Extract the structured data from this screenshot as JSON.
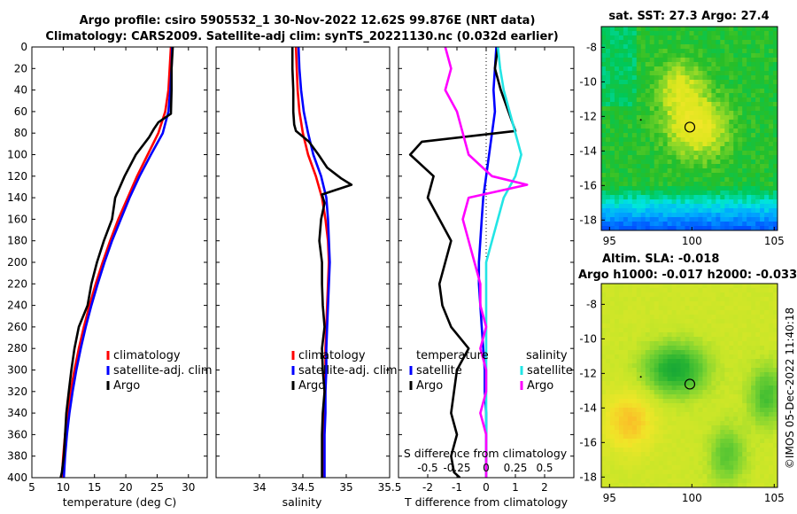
{
  "title": {
    "line1": "Argo profile: csiro 5905532_1 30-Nov-2022 12.62S 99.876E (NRT data)",
    "line2": "Climatology: CARS2009. Satellite-adj clim: synTS_20221130.nc (0.032d earlier)"
  },
  "watermark": "©IMOS 05-Dec-2022 11:40:18",
  "colors": {
    "climatology": "#ff0000",
    "satellite": "#0000ff",
    "argo": "#000000",
    "sal_satellite": "#22e5e5",
    "sal_argo": "#ff00ff"
  },
  "chart_data": [
    {
      "id": "temperature",
      "type": "line",
      "xlabel": "temperature (deg C)",
      "ylabel": "",
      "xlim": [
        5,
        33
      ],
      "ylim": [
        400,
        0
      ],
      "x_ticks": [
        5,
        10,
        15,
        20,
        25,
        30
      ],
      "y_ticks": [
        0,
        20,
        40,
        60,
        80,
        100,
        120,
        140,
        160,
        180,
        200,
        220,
        240,
        260,
        280,
        300,
        320,
        340,
        360,
        380,
        400
      ],
      "legend": [
        "climatology",
        "satellite-adj. clim",
        "Argo"
      ],
      "series": [
        {
          "name": "climatology",
          "x": [
            27.2,
            27.0,
            26.8,
            26.3,
            25.2,
            23.5,
            21.8,
            20.3,
            18.8,
            17.5,
            16.3,
            15.2,
            14.2,
            13.3,
            12.5,
            11.8,
            11.2,
            10.7,
            10.3,
            10.0,
            9.8
          ],
          "y": [
            0,
            20,
            40,
            60,
            80,
            100,
            120,
            140,
            160,
            180,
            200,
            220,
            240,
            260,
            280,
            300,
            320,
            340,
            360,
            380,
            400
          ]
        },
        {
          "name": "satellite-adj. clim",
          "x": [
            27.4,
            27.3,
            27.1,
            26.8,
            25.9,
            24.0,
            22.2,
            20.6,
            19.2,
            17.8,
            16.6,
            15.5,
            14.5,
            13.6,
            12.8,
            12.1,
            11.5,
            11.0,
            10.6,
            10.3,
            10.1
          ],
          "y": [
            0,
            20,
            40,
            60,
            80,
            100,
            120,
            140,
            160,
            180,
            200,
            220,
            240,
            260,
            280,
            300,
            320,
            340,
            360,
            380,
            400
          ]
        },
        {
          "name": "Argo",
          "x": [
            27.5,
            27.3,
            27.3,
            27.2,
            25.2,
            24.5,
            23.7,
            21.6,
            19.8,
            18.3,
            17.8,
            16.5,
            15.4,
            14.5,
            13.9,
            12.5,
            11.8,
            11.3,
            10.9,
            10.5,
            10.3,
            10.1,
            9.8,
            9.6
          ],
          "y": [
            0,
            20,
            40,
            62,
            70,
            76,
            84,
            100,
            120,
            140,
            160,
            180,
            200,
            220,
            240,
            260,
            280,
            300,
            320,
            340,
            360,
            380,
            395,
            400
          ]
        }
      ]
    },
    {
      "id": "salinity",
      "type": "line",
      "xlabel": "salinity",
      "ylabel": "",
      "xlim": [
        33.5,
        35.5
      ],
      "ylim": [
        400,
        0
      ],
      "x_ticks": [
        34,
        34.5,
        35,
        35.5
      ],
      "legend": [
        "climatology",
        "satellite-adj. clim",
        "Argo"
      ],
      "series": [
        {
          "name": "climatology",
          "x": [
            34.42,
            34.43,
            34.44,
            34.46,
            34.5,
            34.56,
            34.65,
            34.72,
            34.76,
            34.79,
            34.8,
            34.79,
            34.78,
            34.77,
            34.76,
            34.76,
            34.75,
            34.75,
            34.74,
            34.74,
            34.74
          ],
          "y": [
            0,
            20,
            40,
            60,
            80,
            100,
            120,
            140,
            160,
            180,
            200,
            220,
            240,
            260,
            280,
            300,
            320,
            340,
            360,
            380,
            400
          ]
        },
        {
          "name": "satellite-adj. clim",
          "x": [
            34.45,
            34.46,
            34.48,
            34.51,
            34.56,
            34.62,
            34.71,
            34.77,
            34.79,
            34.8,
            34.81,
            34.8,
            34.79,
            34.78,
            34.77,
            34.77,
            34.76,
            34.76,
            34.75,
            34.75,
            34.75
          ],
          "y": [
            0,
            20,
            40,
            60,
            80,
            100,
            120,
            140,
            160,
            180,
            200,
            220,
            240,
            260,
            280,
            300,
            320,
            340,
            360,
            380,
            400
          ]
        },
        {
          "name": "Argo",
          "x": [
            34.38,
            34.38,
            34.39,
            34.39,
            34.4,
            34.42,
            34.57,
            34.68,
            34.78,
            34.94,
            35.06,
            34.72,
            34.75,
            34.71,
            34.69,
            34.72,
            34.72,
            34.73,
            34.75,
            34.72,
            34.73,
            34.75,
            34.73,
            34.72,
            34.72,
            34.72
          ],
          "y": [
            0,
            20,
            40,
            60,
            72,
            78,
            88,
            100,
            112,
            122,
            128,
            137,
            145,
            160,
            180,
            200,
            220,
            240,
            260,
            280,
            300,
            320,
            340,
            360,
            380,
            400
          ]
        }
      ]
    },
    {
      "id": "difference",
      "type": "line",
      "xlabel": "T difference from climatology",
      "x2label": "S difference from climatology",
      "ylabel": "",
      "xlim": [
        -3,
        3
      ],
      "ylim": [
        400,
        0
      ],
      "x_ticks": [
        -2,
        -1,
        0,
        1,
        2
      ],
      "x2_ticks": [
        "-0.5",
        "-0.25",
        "0",
        "0.25",
        "0.5"
      ],
      "legend_left_title": "temperature",
      "legend_right_title": "salinity",
      "legend_left": [
        "satellite",
        "Argo"
      ],
      "legend_right": [
        "satellite",
        "Argo"
      ],
      "series": [
        {
          "name": "T satellite",
          "x": [
            0.35,
            0.3,
            0.25,
            0.3,
            0.2,
            0.1,
            0.0,
            -0.1,
            -0.15,
            -0.2,
            -0.25,
            -0.25,
            -0.2,
            -0.15,
            -0.1,
            -0.05,
            -0.05,
            0.0,
            0.0,
            0.0,
            0.0
          ],
          "y": [
            0,
            20,
            40,
            60,
            80,
            100,
            120,
            140,
            160,
            180,
            200,
            220,
            240,
            260,
            280,
            300,
            320,
            340,
            360,
            380,
            400
          ]
        },
        {
          "name": "T Argo",
          "x": [
            0.4,
            0.3,
            0.5,
            1.0,
            -2.2,
            -2.6,
            -1.8,
            -2.0,
            -1.6,
            -1.2,
            -1.4,
            -1.6,
            -1.5,
            -1.2,
            -0.6,
            -1.0,
            -1.1,
            -1.2,
            -1.0,
            -1.2,
            -1.1,
            -0.9
          ],
          "y": [
            0,
            20,
            40,
            78,
            88,
            100,
            120,
            140,
            160,
            180,
            200,
            220,
            240,
            260,
            280,
            300,
            320,
            340,
            360,
            380,
            395,
            400
          ]
        },
        {
          "name": "S satellite",
          "x": [
            0.1,
            0.12,
            0.15,
            0.2,
            0.25,
            0.3,
            0.25,
            0.15,
            0.1,
            0.05,
            0.0,
            0.0,
            0.0,
            0.0,
            0.0,
            0.0,
            0.0,
            0.0,
            0.0,
            0.0,
            0.0
          ],
          "y": [
            0,
            20,
            40,
            60,
            80,
            100,
            120,
            140,
            160,
            180,
            200,
            220,
            240,
            260,
            280,
            300,
            320,
            340,
            360,
            380,
            400
          ]
        },
        {
          "name": "S Argo",
          "x": [
            -0.35,
            -0.3,
            -0.35,
            -0.25,
            -0.2,
            -0.15,
            0.05,
            0.35,
            -0.15,
            -0.2,
            -0.15,
            -0.1,
            -0.05,
            -0.05,
            0.0,
            -0.05,
            0.0,
            0.0,
            -0.05,
            0.0,
            0.0
          ],
          "y": [
            0,
            20,
            40,
            60,
            80,
            100,
            120,
            128,
            140,
            160,
            180,
            200,
            220,
            240,
            260,
            280,
            300,
            320,
            340,
            360,
            400
          ]
        }
      ]
    },
    {
      "id": "sst_map",
      "type": "heatmap",
      "title": "sat. SST: 27.3 Argo: 27.4",
      "x_ticks": [
        95,
        100,
        105
      ],
      "y_ticks": [
        -8,
        -10,
        -12,
        -14,
        -16,
        -18
      ],
      "xlim": [
        94.5,
        105.2
      ],
      "ylim": [
        -18.6,
        -6.8
      ],
      "marker": {
        "lon": 99.876,
        "lat": -12.62
      },
      "dot": {
        "lon": 96.9,
        "lat": -12.2
      }
    },
    {
      "id": "sla_map",
      "type": "heatmap",
      "title": "Altim. SLA: -0.018",
      "subtitle": "Argo h1000: -0.017 h2000: -0.033",
      "x_ticks": [
        95,
        100,
        105
      ],
      "y_ticks": [
        -8,
        -10,
        -12,
        -14,
        -16,
        -18
      ],
      "xlim": [
        94.5,
        105.2
      ],
      "ylim": [
        -18.6,
        -6.8
      ],
      "marker": {
        "lon": 99.876,
        "lat": -12.62
      },
      "dot": {
        "lon": 96.9,
        "lat": -12.2
      }
    }
  ]
}
